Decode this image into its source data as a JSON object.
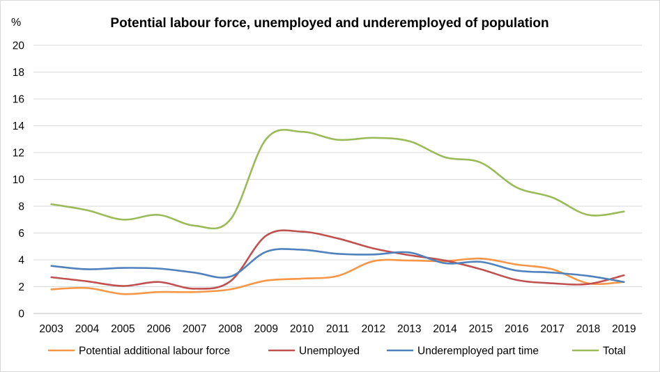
{
  "chart_data": {
    "type": "line",
    "title": "Potential labour force, unemployed and underemployed of population",
    "ylabel": "%",
    "xlabel": "",
    "ylim": [
      0,
      20
    ],
    "yticks": [
      0,
      2,
      4,
      6,
      8,
      10,
      12,
      14,
      16,
      18,
      20
    ],
    "grid": true,
    "legend": "bottom",
    "categories": [
      "2003",
      "2004",
      "2005",
      "2006",
      "2007",
      "2008",
      "2009",
      "2010",
      "2011",
      "2012",
      "2013",
      "2014",
      "2015",
      "2016",
      "2017",
      "2018",
      "2019"
    ],
    "series": [
      {
        "name": "Potential additional labour force",
        "color": "#f79646",
        "values": [
          1.8,
          1.9,
          1.45,
          1.6,
          1.6,
          1.8,
          2.45,
          2.6,
          2.8,
          3.9,
          3.95,
          3.9,
          4.1,
          3.65,
          3.3,
          2.25,
          2.35
        ]
      },
      {
        "name": "Unemployed",
        "color": "#c0504d",
        "values": [
          2.7,
          2.4,
          2.05,
          2.35,
          1.85,
          2.4,
          5.8,
          6.1,
          5.6,
          4.85,
          4.35,
          3.95,
          3.3,
          2.5,
          2.25,
          2.2,
          2.85
        ]
      },
      {
        "name": "Underemployed part time",
        "color": "#4f81bd",
        "values": [
          3.55,
          3.3,
          3.4,
          3.35,
          3.05,
          2.75,
          4.6,
          4.75,
          4.45,
          4.4,
          4.55,
          3.75,
          3.85,
          3.2,
          3.05,
          2.8,
          2.35
        ]
      },
      {
        "name": "Total",
        "color": "#9bbb59",
        "values": [
          8.15,
          7.7,
          7.0,
          7.35,
          6.55,
          7.0,
          13.0,
          13.55,
          12.95,
          13.1,
          12.85,
          11.65,
          11.25,
          9.4,
          8.65,
          7.35,
          7.6
        ]
      }
    ]
  }
}
